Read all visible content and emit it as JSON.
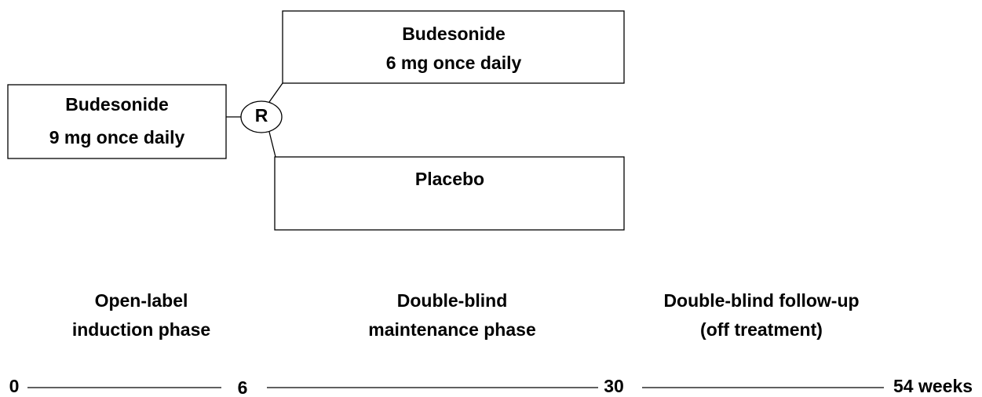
{
  "nodes": [
    {
      "id": "induction",
      "lines": [
        "Budesonide",
        "9 mg once daily"
      ]
    },
    {
      "id": "randomization",
      "lines": [
        "R"
      ]
    },
    {
      "id": "maintenance",
      "lines": [
        "Budesonide",
        "6 mg once daily"
      ]
    },
    {
      "id": "placebo",
      "lines": [
        "Placebo"
      ]
    }
  ],
  "phases": [
    {
      "lines": [
        "Open-label",
        "induction phase"
      ]
    },
    {
      "lines": [
        "Double-blind",
        "maintenance phase"
      ]
    },
    {
      "lines": [
        "Double-blind follow-up",
        "(off treatment)"
      ]
    }
  ],
  "timeline": [
    "0",
    "6",
    "30",
    "54 weeks"
  ]
}
